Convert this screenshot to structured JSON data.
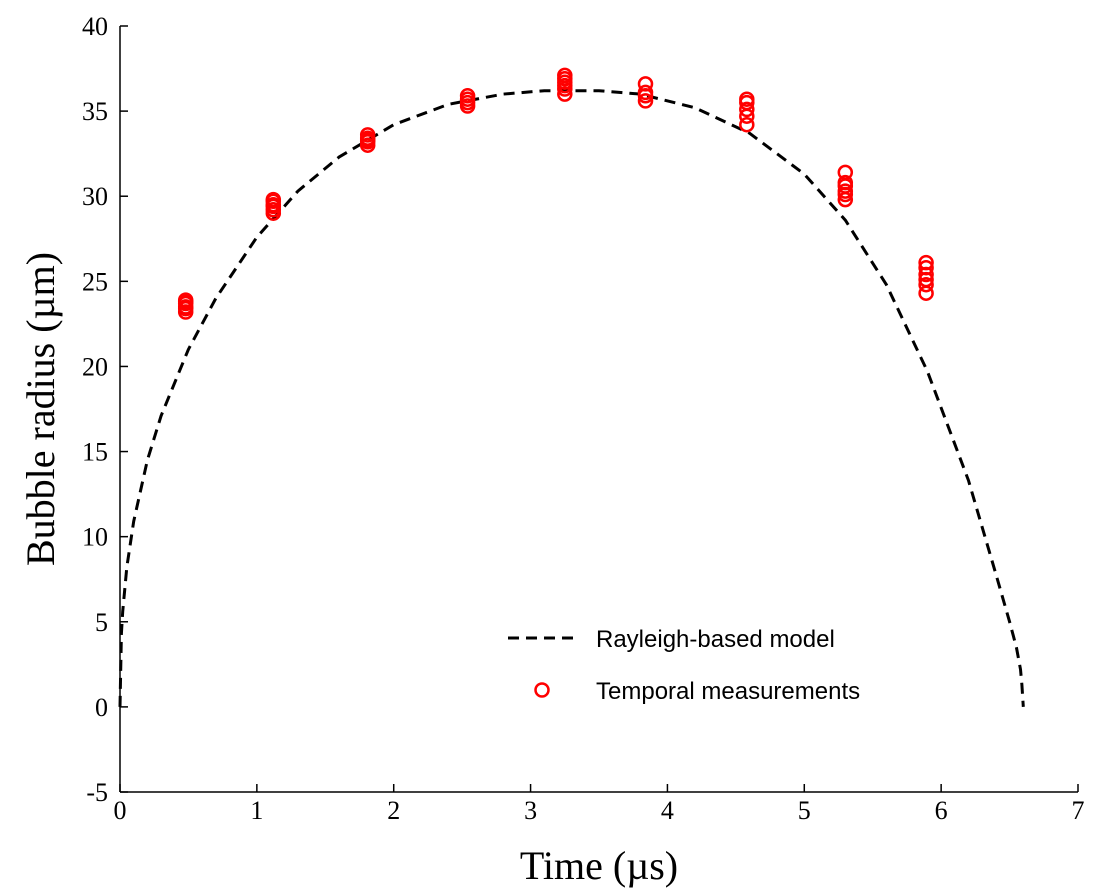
{
  "chart_data": {
    "type": "scatter",
    "xlabel": "Time (µs)",
    "ylabel": "Bubble radius (µm)",
    "xlim": [
      0,
      7
    ],
    "ylim": [
      -5,
      40
    ],
    "xticks": [
      0,
      1,
      2,
      3,
      4,
      5,
      6,
      7
    ],
    "yticks": [
      -5,
      0,
      5,
      10,
      15,
      20,
      25,
      30,
      35,
      40
    ],
    "grid": false,
    "legend_position": "bottom-right",
    "series": [
      {
        "name": "Rayleigh-based model",
        "kind": "line",
        "style": "dashed",
        "color": "#000000",
        "peak_radius": 36.2,
        "peak_time": 3.3,
        "end_time": 6.6,
        "x": [
          0,
          0.01,
          0.02,
          0.05,
          0.1,
          0.2,
          0.3,
          0.5,
          0.7,
          1.0,
          1.3,
          1.6,
          2.0,
          2.4,
          2.8,
          3.1,
          3.3,
          3.5,
          3.8,
          4.2,
          4.6,
          5.0,
          5.3,
          5.6,
          5.9,
          6.2,
          6.4,
          6.5,
          6.55,
          6.58,
          6.59,
          6.6
        ],
        "y": [
          0,
          4.3,
          5.6,
          8.2,
          10.9,
          14.5,
          17.1,
          21.0,
          24.0,
          27.6,
          30.3,
          32.3,
          34.2,
          35.4,
          36.0,
          36.2,
          36.2,
          36.2,
          36.0,
          35.2,
          33.7,
          31.3,
          28.6,
          24.8,
          19.7,
          13.3,
          7.8,
          5.0,
          3.5,
          2.2,
          1.3,
          0
        ]
      },
      {
        "name": "Temporal measurements",
        "kind": "scatter",
        "marker": "open-circle",
        "color": "#ff0000",
        "x": [
          0.48,
          0.48,
          0.48,
          0.48,
          0.48,
          0.48,
          1.12,
          1.12,
          1.12,
          1.12,
          1.12,
          1.12,
          1.81,
          1.81,
          1.81,
          1.81,
          1.81,
          2.54,
          2.54,
          2.54,
          2.54,
          3.25,
          3.25,
          3.25,
          3.25,
          3.25,
          3.25,
          3.84,
          3.84,
          3.84,
          3.84,
          4.58,
          4.58,
          4.58,
          4.58,
          4.58,
          5.3,
          5.3,
          5.3,
          5.3,
          5.3,
          5.3,
          5.89,
          5.89,
          5.89,
          5.89,
          5.89,
          5.89
        ],
        "y": [
          23.2,
          23.4,
          23.5,
          23.7,
          23.8,
          23.9,
          29.0,
          29.2,
          29.4,
          29.5,
          29.7,
          29.8,
          33.0,
          33.2,
          33.3,
          33.4,
          33.6,
          35.3,
          35.5,
          35.7,
          35.9,
          36.0,
          36.3,
          36.5,
          36.7,
          36.9,
          37.1,
          35.6,
          35.9,
          36.1,
          36.6,
          34.2,
          34.7,
          35.1,
          35.5,
          35.7,
          29.8,
          30.1,
          30.3,
          30.6,
          30.8,
          31.4,
          24.3,
          24.8,
          25.1,
          25.4,
          25.8,
          26.1
        ]
      }
    ]
  }
}
